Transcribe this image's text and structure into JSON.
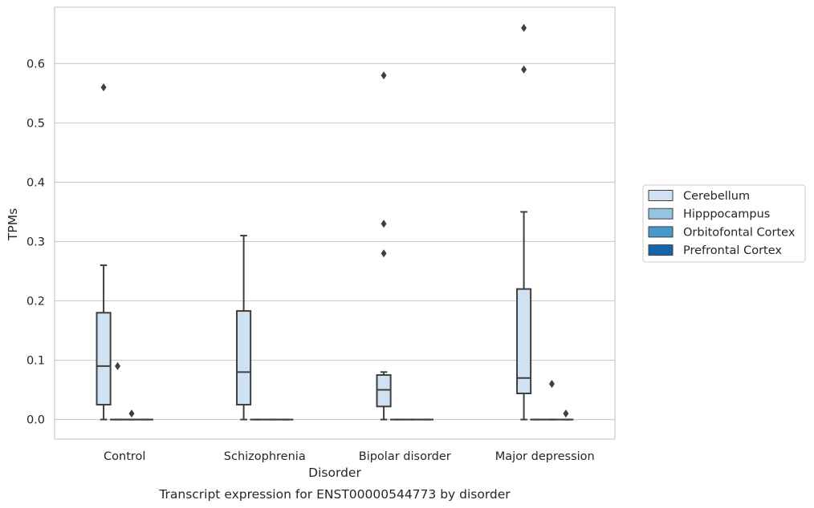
{
  "chart_data": {
    "type": "box",
    "caption": "Transcript expression for ENST00000544773 by disorder",
    "xlabel": "Disorder",
    "ylabel": "TPMs",
    "ylim": [
      -0.033,
      0.695
    ],
    "yticks": [
      0.0,
      0.1,
      0.2,
      0.3,
      0.4,
      0.5,
      0.6
    ],
    "ytick_labels": [
      "0.0",
      "0.1",
      "0.2",
      "0.3",
      "0.4",
      "0.5",
      "0.6"
    ],
    "grid": true,
    "legend_position": "right",
    "categories": [
      "Control",
      "Schizophrenia",
      "Bipolar disorder",
      "Major depression"
    ],
    "series": [
      {
        "name": "Cerebellum",
        "color": "#d0e1f2",
        "boxes": [
          {
            "whisker_low": 0.0,
            "q1": 0.025,
            "median": 0.09,
            "q3": 0.18,
            "whisker_high": 0.26,
            "outliers": [
              0.56
            ]
          },
          {
            "whisker_low": 0.0,
            "q1": 0.025,
            "median": 0.08,
            "q3": 0.183,
            "whisker_high": 0.31,
            "outliers": []
          },
          {
            "whisker_low": 0.0,
            "q1": 0.022,
            "median": 0.05,
            "q3": 0.075,
            "whisker_high": 0.08,
            "outliers": [
              0.28,
              0.33,
              0.58
            ]
          },
          {
            "whisker_low": 0.0,
            "q1": 0.044,
            "median": 0.07,
            "q3": 0.22,
            "whisker_high": 0.35,
            "outliers": [
              0.59,
              0.66
            ]
          }
        ]
      },
      {
        "name": "Hipppocampus",
        "color": "#94c4df",
        "boxes": [
          {
            "whisker_low": 0.0,
            "q1": 0.0,
            "median": 0.0,
            "q3": 0.0,
            "whisker_high": 0.0,
            "outliers": [
              0.09
            ]
          },
          {
            "whisker_low": 0.0,
            "q1": 0.0,
            "median": 0.0,
            "q3": 0.0,
            "whisker_high": 0.0,
            "outliers": []
          },
          {
            "whisker_low": 0.0,
            "q1": 0.0,
            "median": 0.0,
            "q3": 0.0,
            "whisker_high": 0.0,
            "outliers": []
          },
          {
            "whisker_low": 0.0,
            "q1": 0.0,
            "median": 0.0,
            "q3": 0.0,
            "whisker_high": 0.0,
            "outliers": []
          }
        ]
      },
      {
        "name": "Orbitofontal Cortex",
        "color": "#4a98c9",
        "boxes": [
          {
            "whisker_low": 0.0,
            "q1": 0.0,
            "median": 0.0,
            "q3": 0.0,
            "whisker_high": 0.0,
            "outliers": [
              0.01
            ]
          },
          {
            "whisker_low": 0.0,
            "q1": 0.0,
            "median": 0.0,
            "q3": 0.0,
            "whisker_high": 0.0,
            "outliers": []
          },
          {
            "whisker_low": 0.0,
            "q1": 0.0,
            "median": 0.0,
            "q3": 0.0,
            "whisker_high": 0.0,
            "outliers": []
          },
          {
            "whisker_low": 0.0,
            "q1": 0.0,
            "median": 0.0,
            "q3": 0.0,
            "whisker_high": 0.0,
            "outliers": [
              0.06
            ]
          }
        ]
      },
      {
        "name": "Prefrontal Cortex",
        "color": "#1764ab",
        "boxes": [
          {
            "whisker_low": 0.0,
            "q1": 0.0,
            "median": 0.0,
            "q3": 0.0,
            "whisker_high": 0.0,
            "outliers": []
          },
          {
            "whisker_low": 0.0,
            "q1": 0.0,
            "median": 0.0,
            "q3": 0.0,
            "whisker_high": 0.0,
            "outliers": []
          },
          {
            "whisker_low": 0.0,
            "q1": 0.0,
            "median": 0.0,
            "q3": 0.0,
            "whisker_high": 0.0,
            "outliers": []
          },
          {
            "whisker_low": 0.0,
            "q1": 0.0,
            "median": 0.0,
            "q3": 0.0,
            "whisker_high": 0.0,
            "outliers": [
              0.01
            ]
          }
        ]
      }
    ]
  }
}
